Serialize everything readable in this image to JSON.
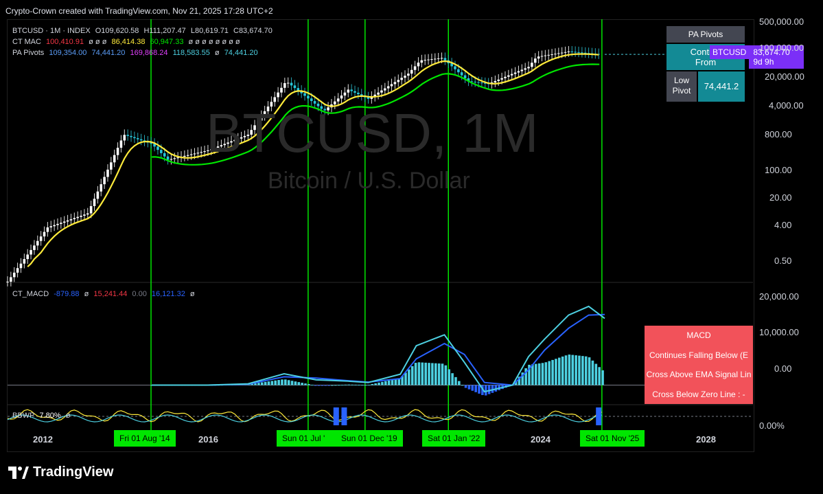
{
  "header": {
    "title": "Crypto-Crown created with TradingView.com, Nov 21, 2025 17:28 UTC+2"
  },
  "legend": {
    "symbol_line": "BTCUSD · 1M · INDEX",
    "ohlc": {
      "o": "O109,620.58",
      "h": "H111,207.47",
      "l": "L80,619.71",
      "c": "C83,674.70"
    },
    "ctmac": {
      "label": "CT MAC",
      "v1": "100,410.91",
      "nulls1": "ø ø ø",
      "v2": "86,414.38",
      "v3": "60,947.33",
      "nulls2": "ø ø ø ø ø ø ø ø"
    },
    "papivots": {
      "label": "PA Pivots",
      "v1": "109,354.00",
      "v2": "74,441.20",
      "v3": "169,868.24",
      "v4": "118,583.55",
      "null": "ø",
      "v5": "74,441.20"
    },
    "macd": {
      "label": "CT_MACD",
      "v1": "-879.88",
      "n1": "ø",
      "v2": "15,241.44",
      "v3": "0.00",
      "v4": "16,121.32",
      "n2": "ø"
    },
    "bbwp": {
      "label": "BBWP",
      "value": "7.80%",
      "n": "ø"
    }
  },
  "watermark": {
    "symbol": "BTCUSD, 1M",
    "name": "Bitcoin / U.S. Dollar"
  },
  "pa_pivots_table": {
    "title": "PA Pivots",
    "cont_line1": "Continu",
    "cont_line2": "From",
    "low_label1": "Low",
    "low_label2": "Pivot",
    "low_value": "74,441.2"
  },
  "price_tag": {
    "symbol": "BTCUSD",
    "value": "83,674.70",
    "countdown": "9d 9h"
  },
  "macd_table": {
    "title": "MACD",
    "row1": "Continues Falling Below (E",
    "row2": "Cross Above EMA Signal Lin",
    "row3": "Cross Below Zero Line : -"
  },
  "price_axis": [
    "500,000.00",
    "100,000.00",
    "20,000.00",
    "4,000.00",
    "800.00",
    "100.00",
    "20.00",
    "4.00",
    "0.50"
  ],
  "macd_axis": [
    "20,000.00",
    "10,000.00",
    "0.00"
  ],
  "bbwp_axis": [
    "0.00%"
  ],
  "time_axis": {
    "years": [
      "2012",
      "2016",
      "2024",
      "2028"
    ],
    "markers": [
      "Fri 01 Aug '14",
      "Sun 01 Jul '",
      "Sun 01 Dec '19",
      "Sat 01 Jan '22",
      "Sat 01 Nov '25"
    ]
  },
  "branding": {
    "logo_text": "TradingView"
  },
  "colors": {
    "background": "#000000",
    "signal_lines": "#00e600",
    "ema_fast": "#ffeb3b",
    "ema_slow": "#00e600",
    "macd_line": "#4dd0e1",
    "signal": "#2962ff",
    "pivot_tag": "#7b2ff7",
    "macd_table": "#f2525a",
    "pa_table": "#138a95"
  },
  "chart_data": [
    {
      "type": "line",
      "title": "BTCUSD, 1M",
      "y_scale": "log",
      "x": [
        2011.0,
        2012.0,
        2013.0,
        2013.9,
        2014.6,
        2015.0,
        2016.0,
        2017.0,
        2017.95,
        2018.9,
        2019.5,
        2020.0,
        2021.0,
        2021.3,
        2021.85,
        2022.5,
        2023.0,
        2024.0,
        2024.2,
        2025.0,
        2025.8
      ],
      "series": [
        {
          "name": "BTCUSD",
          "values": [
            0.3,
            6,
            13,
            1000,
            600,
            250,
            420,
            1000,
            19000,
            3700,
            12000,
            7200,
            29000,
            60000,
            69000,
            19000,
            16500,
            42000,
            73000,
            98000,
            83674.7
          ]
        }
      ],
      "ylim": [
        0.3,
        500000
      ]
    },
    {
      "type": "line",
      "title": "CT_MACD",
      "x": [
        2014.6,
        2016.0,
        2017.0,
        2017.9,
        2018.7,
        2019.5,
        2020.0,
        2020.8,
        2021.2,
        2021.9,
        2022.4,
        2022.9,
        2023.6,
        2024.0,
        2024.4,
        2025.0,
        2025.5,
        2025.9
      ],
      "series": [
        {
          "name": "MACD",
          "values": [
            0,
            0,
            300,
            2600,
            1200,
            900,
            600,
            2500,
            9000,
            11500,
            5200,
            -1500,
            0,
            6500,
            10500,
            16000,
            18000,
            15241.44
          ]
        },
        {
          "name": "Signal",
          "values": [
            0,
            0,
            200,
            1900,
            1600,
            1000,
            700,
            1500,
            6000,
            9500,
            7000,
            600,
            0,
            3500,
            8000,
            13000,
            16000,
            16121.32
          ]
        }
      ],
      "ylim": [
        -4000,
        23000
      ]
    }
  ]
}
